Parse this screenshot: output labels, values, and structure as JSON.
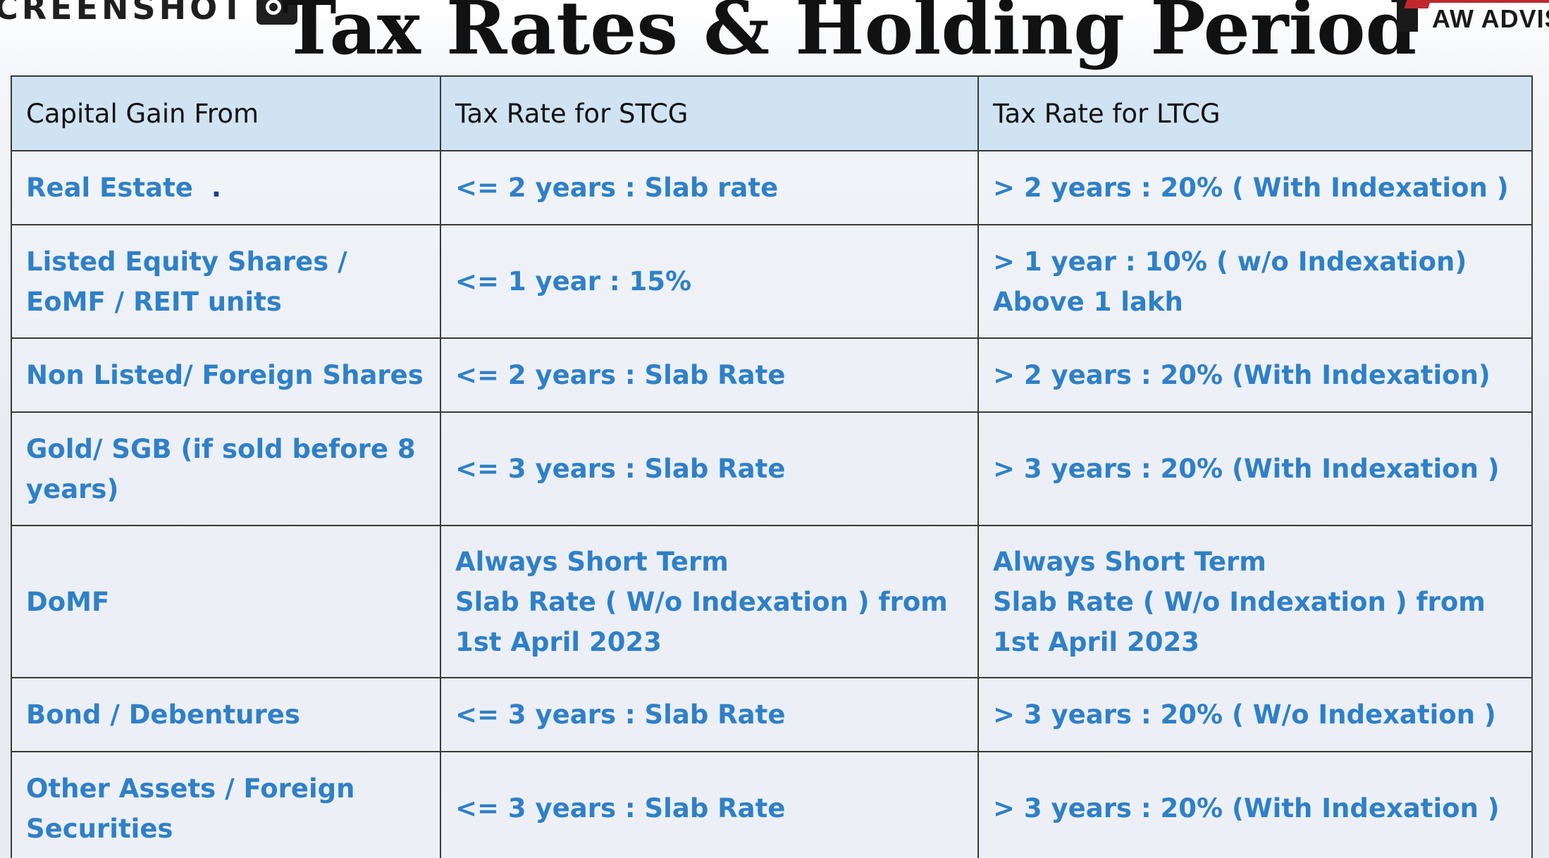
{
  "watermark": {
    "label": "CREENSHOT",
    "icon": "camera-icon"
  },
  "page": {
    "title": "Tax Rates & Holding Period"
  },
  "brand": {
    "text": "AW ADVISO",
    "colors": {
      "red": "#c0282d",
      "dark": "#1a1a1a"
    }
  },
  "colors": {
    "header_bg": "#cfe3f3",
    "cell_text": "#2f80c6",
    "border": "#3a3a3a"
  },
  "table": {
    "headers": [
      "Capital Gain From",
      "Tax Rate for STCG",
      "Tax Rate for LTCG"
    ],
    "rows": [
      {
        "asset": "Real Estate",
        "stcg": "<= 2 years : Slab rate",
        "ltcg": "> 2 years : 20% ( With Indexation )"
      },
      {
        "asset": "Listed Equity Shares / EoMF / REIT units",
        "stcg": "<= 1 year : 15%",
        "ltcg": "> 1 year : 10% ( w/o Indexation)\nAbove 1 lakh"
      },
      {
        "asset": "Non Listed/ Foreign Shares",
        "stcg": "<= 2 years : Slab Rate",
        "ltcg": "> 2 years : 20% (With Indexation)"
      },
      {
        "asset": "Gold/ SGB (if sold before 8 years)",
        "stcg": "<= 3 years : Slab Rate",
        "ltcg": "> 3 years : 20% (With Indexation )"
      },
      {
        "asset": "DoMF",
        "stcg": "Always Short Term\nSlab Rate ( W/o Indexation ) from 1st April 2023",
        "ltcg": "Always Short Term\nSlab Rate ( W/o Indexation ) from 1st April 2023"
      },
      {
        "asset": "Bond / Debentures",
        "stcg": "<= 3 years : Slab Rate",
        "ltcg": "> 3 years : 20% ( W/o Indexation )"
      },
      {
        "asset": "Other Assets / Foreign Securities",
        "stcg": "<= 3 years : Slab Rate",
        "ltcg": "> 3 years : 20% (With Indexation )"
      }
    ]
  }
}
